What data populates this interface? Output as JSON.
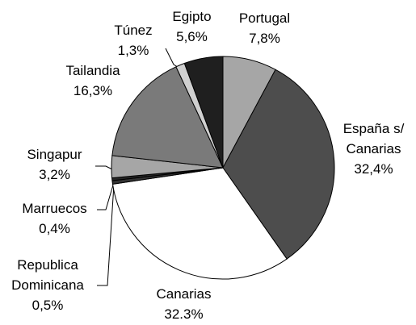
{
  "chart_data": {
    "type": "pie",
    "categories": [
      "Portugal",
      "España s/ Canarias",
      "Canarias",
      "Republica Dominicana",
      "Marruecos",
      "Singapur",
      "Tailandia",
      "Túnez",
      "Egipto"
    ],
    "values": [
      7.8,
      32.4,
      32.3,
      0.5,
      0.4,
      3.2,
      16.3,
      1.3,
      5.6
    ],
    "value_labels": [
      "7,8%",
      "32,4%",
      "32.3%",
      "0,5%",
      "0,4%",
      "3,2%",
      "16,3%",
      "1,3%",
      "5,6%"
    ],
    "colors": [
      "#a6a6a6",
      "#4d4d4d",
      "#ffffff",
      "#333333",
      "#262626",
      "#a6a6a6",
      "#7a7a7a",
      "#d0d0d0",
      "#1f1f1f"
    ],
    "start_angle": 90,
    "direction": "clockwise"
  }
}
